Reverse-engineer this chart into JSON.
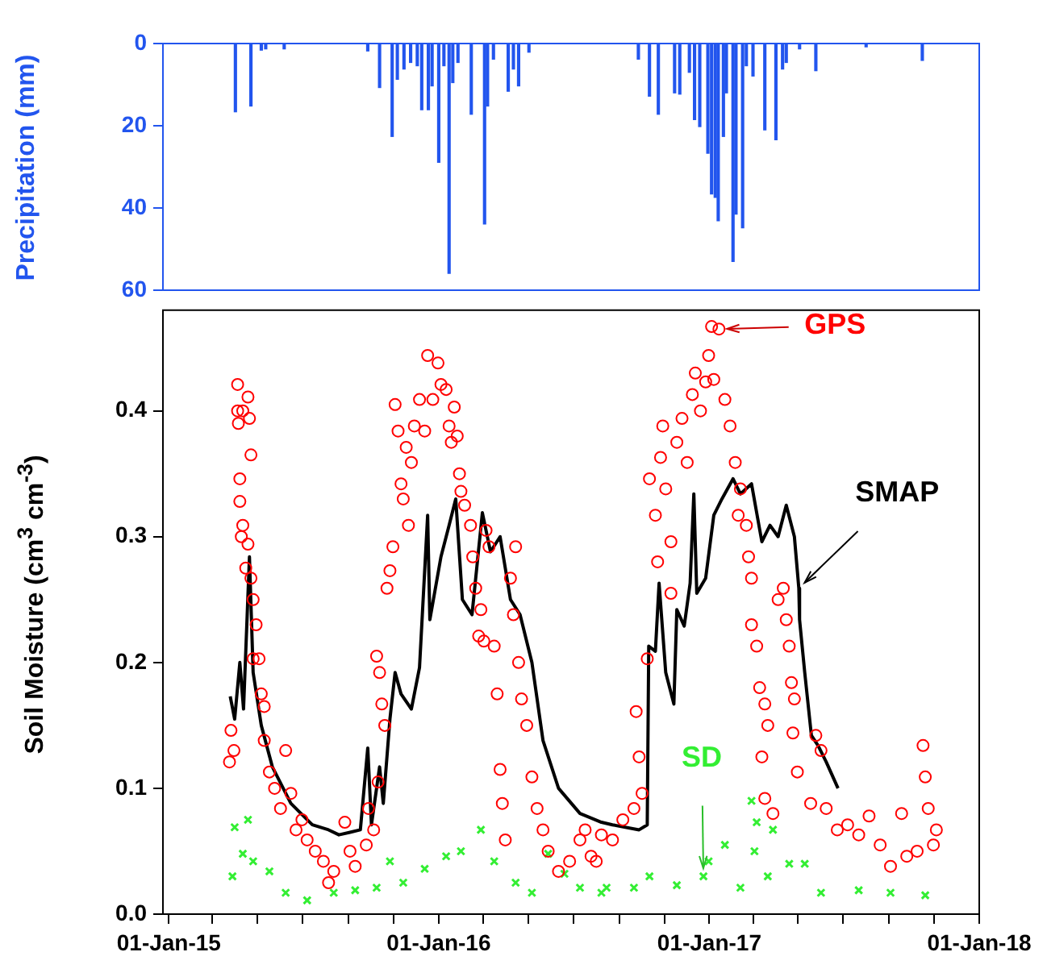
{
  "chart_data": [
    {
      "type": "bar",
      "ylabel": "Precipitation (mm)",
      "color": "#2255ee",
      "xlim": [
        "2014-12-24",
        "2018-01-01"
      ],
      "ylim": [
        60,
        0
      ],
      "yticks": [
        0,
        20,
        40,
        60
      ],
      "tick_labels": "y",
      "x": [
        "2015-04-01",
        "2015-04-22",
        "2015-05-06",
        "2015-05-12",
        "2015-06-06",
        "2015-09-27",
        "2015-10-13",
        "2015-10-30",
        "2015-11-06",
        "2015-11-15",
        "2015-11-24",
        "2015-12-03",
        "2015-12-09",
        "2015-12-18",
        "2015-12-23",
        "2016-01-01",
        "2016-01-08",
        "2016-01-15",
        "2016-01-20",
        "2016-01-27",
        "2016-02-14",
        "2016-03-03",
        "2016-03-07",
        "2016-03-15",
        "2016-04-04",
        "2016-04-11",
        "2016-04-18",
        "2016-05-02",
        "2016-09-27",
        "2016-10-12",
        "2016-10-24",
        "2016-11-15",
        "2016-11-22",
        "2016-12-05",
        "2016-12-12",
        "2016-12-19",
        "2016-12-30",
        "2017-01-04",
        "2017-01-09",
        "2017-01-13",
        "2017-01-20",
        "2017-01-24",
        "2017-02-02",
        "2017-02-06",
        "2017-02-15",
        "2017-02-20",
        "2017-03-01",
        "2017-03-17",
        "2017-04-01",
        "2017-04-10",
        "2017-04-15",
        "2017-05-03",
        "2017-05-25",
        "2017-08-01",
        "2017-10-16"
      ],
      "values": [
        16.6,
        15.2,
        1.6,
        1.3,
        1.3,
        1.8,
        10.7,
        22.6,
        8.7,
        6.2,
        4.6,
        5.4,
        16.1,
        16.1,
        10.3,
        28.9,
        5.4,
        55.9,
        9.5,
        4.6,
        17.2,
        43.9,
        15.2,
        3.8,
        11.6,
        6.2,
        10.3,
        2.1,
        3.8,
        12.8,
        17.2,
        12.0,
        12.3,
        7.0,
        18.5,
        20.2,
        26.7,
        36.6,
        37.4,
        43.1,
        22.6,
        12.0,
        53.0,
        41.5,
        44.8,
        5.4,
        7.9,
        21.0,
        23.4,
        6.2,
        4.6,
        1.3,
        6.6,
        0.8,
        4.1
      ]
    },
    {
      "type": "scatter",
      "ylabel": "Soil Moisture (cm$^{3}$ cm$^{-3}$)",
      "xlim": [
        "2014-12-24",
        "2018-01-01"
      ],
      "xticks": [
        {
          "value": "2015-01-01",
          "label": "01-Jan-15"
        },
        {
          "value": "2015-03-01",
          "label": null
        },
        {
          "value": "2015-05-01",
          "label": null
        },
        {
          "value": "2015-07-01",
          "label": null
        },
        {
          "value": "2015-09-01",
          "label": null
        },
        {
          "value": "2015-11-01",
          "label": null
        },
        {
          "value": "2016-01-01",
          "label": "01-Jan-16"
        },
        {
          "value": "2016-03-01",
          "label": null
        },
        {
          "value": "2016-05-01",
          "label": null
        },
        {
          "value": "2016-07-01",
          "label": null
        },
        {
          "value": "2016-09-01",
          "label": null
        },
        {
          "value": "2016-11-01",
          "label": null
        },
        {
          "value": "2017-01-01",
          "label": "01-Jan-17"
        },
        {
          "value": "2017-03-01",
          "label": null
        },
        {
          "value": "2017-05-01",
          "label": null
        },
        {
          "value": "2017-07-01",
          "label": null
        },
        {
          "value": "2017-09-01",
          "label": null
        },
        {
          "value": "2017-11-01",
          "label": null
        },
        {
          "value": "2018-01-01",
          "label": "01-Jan-18"
        }
      ],
      "ylim": [
        0,
        0.48
      ],
      "yticks": [
        {
          "value": 0,
          "label": "0.0"
        },
        0.1,
        0.2,
        0.3,
        0.4
      ],
      "series": [
        {
          "type": "scatter",
          "marker": "circle",
          "color": "#ff0000",
          "x": [
            "2015-03-24",
            "2015-03-26",
            "2015-03-30",
            "2015-04-04",
            "2015-04-04",
            "2015-04-05",
            "2015-04-11",
            "2015-04-18",
            "2015-04-20",
            "2015-04-22",
            "2015-04-07",
            "2015-04-07",
            "2015-04-11",
            "2015-04-09",
            "2015-04-15",
            "2015-04-18",
            "2015-04-22",
            "2015-04-25",
            "2015-04-29",
            "2015-04-25",
            "2015-05-03",
            "2015-05-06",
            "2015-05-10",
            "2015-05-10",
            "2015-05-17",
            "2015-05-24",
            "2015-06-01",
            "2015-06-08",
            "2015-06-15",
            "2015-06-22",
            "2015-06-30",
            "2015-07-07",
            "2015-07-18",
            "2015-07-29",
            "2015-08-05",
            "2015-08-12",
            "2015-08-27",
            "2015-09-03",
            "2015-09-10",
            "2015-09-25",
            "2015-09-28",
            "2015-10-05",
            "2015-10-09",
            "2015-10-13",
            "2015-10-16",
            "2015-10-20",
            "2015-10-11",
            "2015-10-23",
            "2015-10-27",
            "2015-10-31",
            "2015-11-03",
            "2015-11-07",
            "2015-11-11",
            "2015-11-14",
            "2015-11-21",
            "2015-11-18",
            "2015-11-25",
            "2015-11-29",
            "2015-12-06",
            "2015-12-13",
            "2015-12-17",
            "2015-12-24",
            "2015-12-31",
            "2016-01-04",
            "2016-01-11",
            "2016-01-15",
            "2016-01-18",
            "2016-01-22",
            "2016-01-26",
            "2016-01-29",
            "2016-01-31",
            "2016-02-05",
            "2016-02-13",
            "2016-02-16",
            "2016-02-20",
            "2016-02-24",
            "2016-02-27",
            "2016-03-02",
            "2016-03-05",
            "2016-03-09",
            "2016-03-16",
            "2016-03-20",
            "2016-03-24",
            "2016-03-27",
            "2016-03-31",
            "2016-04-07",
            "2016-04-11",
            "2016-04-14",
            "2016-04-18",
            "2016-04-22",
            "2016-04-29",
            "2016-05-06",
            "2016-05-13",
            "2016-05-21",
            "2016-05-28",
            "2016-06-11",
            "2016-06-26",
            "2016-07-10",
            "2016-07-25",
            "2016-08-08",
            "2016-07-17",
            "2016-08-01",
            "2016-08-23",
            "2016-09-06",
            "2016-09-21",
            "2016-10-02",
            "2016-09-28",
            "2016-09-24",
            "2016-10-09",
            "2016-10-12",
            "2016-10-20",
            "2016-10-23",
            "2016-10-27",
            "2016-10-30",
            "2016-11-03",
            "2016-11-10",
            "2016-11-10",
            "2016-11-18",
            "2016-11-25",
            "2016-12-02",
            "2016-12-09",
            "2016-12-13",
            "2016-12-20",
            "2016-12-27",
            "2016-12-31",
            "2017-01-07",
            "2017-01-04",
            "2017-01-14",
            "2017-01-22",
            "2017-01-29",
            "2017-02-05",
            "2017-02-09",
            "2017-02-12",
            "2017-02-20",
            "2017-02-23",
            "2017-02-27",
            "2017-02-27",
            "2017-03-06",
            "2017-03-10",
            "2017-03-17",
            "2017-03-21",
            "2017-03-13",
            "2017-03-17",
            "2017-03-28",
            "2017-04-04",
            "2017-04-11",
            "2017-04-15",
            "2017-04-19",
            "2017-04-22",
            "2017-04-26",
            "2017-04-24",
            "2017-04-30",
            "2017-05-18",
            "2017-05-25",
            "2017-06-01",
            "2017-06-08",
            "2017-06-23",
            "2017-07-07",
            "2017-07-22",
            "2017-08-05",
            "2017-08-20",
            "2017-09-03",
            "2017-09-18",
            "2017-09-25",
            "2017-10-09",
            "2017-10-17",
            "2017-10-20",
            "2017-10-24",
            "2017-10-31",
            "2017-11-04"
          ],
          "values": [
            0.121,
            0.146,
            0.13,
            0.421,
            0.4,
            0.39,
            0.4,
            0.411,
            0.394,
            0.365,
            0.346,
            0.328,
            0.309,
            0.3,
            0.275,
            0.294,
            0.267,
            0.25,
            0.23,
            0.203,
            0.203,
            0.175,
            0.165,
            0.138,
            0.113,
            0.1,
            0.084,
            0.13,
            0.096,
            0.067,
            0.075,
            0.059,
            0.05,
            0.042,
            0.025,
            0.034,
            0.073,
            0.05,
            0.038,
            0.055,
            0.084,
            0.067,
            0.205,
            0.192,
            0.167,
            0.15,
            0.105,
            0.259,
            0.273,
            0.292,
            0.405,
            0.384,
            0.342,
            0.33,
            0.309,
            0.371,
            0.359,
            0.388,
            0.409,
            0.384,
            0.444,
            0.409,
            0.438,
            0.421,
            0.417,
            0.388,
            0.375,
            0.403,
            0.38,
            0.35,
            0.336,
            0.325,
            0.309,
            0.284,
            0.259,
            0.221,
            0.242,
            0.217,
            0.305,
            0.292,
            0.213,
            0.175,
            0.115,
            0.088,
            0.059,
            0.267,
            0.238,
            0.292,
            0.2,
            0.171,
            0.15,
            0.109,
            0.084,
            0.067,
            0.05,
            0.034,
            0.042,
            0.059,
            0.046,
            0.063,
            0.067,
            0.042,
            0.059,
            0.075,
            0.084,
            0.096,
            0.125,
            0.161,
            0.203,
            0.346,
            0.317,
            0.28,
            0.363,
            0.388,
            0.338,
            0.296,
            0.255,
            0.375,
            0.394,
            0.359,
            0.413,
            0.43,
            0.4,
            0.423,
            0.444,
            0.425,
            0.467,
            0.465,
            0.409,
            0.388,
            0.359,
            0.317,
            0.338,
            0.309,
            0.284,
            0.267,
            0.23,
            0.213,
            0.18,
            0.167,
            0.15,
            0.125,
            0.092,
            0.08,
            0.25,
            0.259,
            0.234,
            0.213,
            0.184,
            0.171,
            0.144,
            0.113,
            0.088,
            0.142,
            0.13,
            0.084,
            0.067,
            0.071,
            0.063,
            0.078,
            0.055,
            0.038,
            0.08,
            0.046,
            0.05,
            0.134,
            0.109,
            0.084,
            0.055,
            0.067
          ]
        },
        {
          "type": "line",
          "marker": "none",
          "color": "#000000",
          "x": [
            "2015-03-25",
            "2015-03-31",
            "2015-04-07",
            "2015-04-12",
            "2015-04-20",
            "2015-04-25",
            "2015-05-06",
            "2015-05-21",
            "2015-06-15",
            "2015-07-14",
            "2015-08-05",
            "2015-08-19",
            "2015-09-03",
            "2015-09-17",
            "2015-09-27",
            "2015-10-02",
            "2015-10-13",
            "2015-10-18",
            "2015-10-27",
            "2015-11-03",
            "2015-11-11",
            "2015-11-25",
            "2015-12-06",
            "2015-12-17",
            "2015-12-20",
            "2016-01-04",
            "2016-01-15",
            "2016-01-24",
            "2016-02-02",
            "2016-02-15",
            "2016-02-29",
            "2016-03-11",
            "2016-03-24",
            "2016-04-07",
            "2016-04-20",
            "2016-05-06",
            "2016-05-21",
            "2016-06-11",
            "2016-07-10",
            "2016-08-08",
            "2016-08-23",
            "2016-09-28",
            "2016-10-09",
            "2016-10-11",
            "2016-10-20",
            "2016-10-25",
            "2016-11-03",
            "2016-11-14",
            "2016-11-18",
            "2016-11-28",
            "2016-12-06",
            "2016-12-11",
            "2016-12-15",
            "2016-12-27",
            "2017-01-07",
            "2017-01-18",
            "2017-02-02",
            "2017-02-12",
            "2017-02-27",
            "2017-03-13",
            "2017-03-24",
            "2017-04-04",
            "2017-04-15",
            "2017-04-26",
            "2017-05-02",
            "2017-05-03",
            "2017-05-10",
            "2017-05-19",
            "2017-05-28",
            "2017-06-08",
            "2017-06-24"
          ],
          "values": [
            0.173,
            0.155,
            0.2,
            0.163,
            0.284,
            0.192,
            0.15,
            0.117,
            0.088,
            0.071,
            0.067,
            0.063,
            0.065,
            0.067,
            0.132,
            0.071,
            0.117,
            0.088,
            0.155,
            0.192,
            0.175,
            0.163,
            0.196,
            0.317,
            0.234,
            0.284,
            0.309,
            0.33,
            0.25,
            0.238,
            0.319,
            0.288,
            0.3,
            0.25,
            0.238,
            0.2,
            0.138,
            0.1,
            0.08,
            0.073,
            0.071,
            0.067,
            0.071,
            0.213,
            0.209,
            0.263,
            0.192,
            0.167,
            0.242,
            0.229,
            0.263,
            0.334,
            0.255,
            0.267,
            0.317,
            0.33,
            0.346,
            0.334,
            0.342,
            0.296,
            0.309,
            0.3,
            0.325,
            0.3,
            0.259,
            0.234,
            0.192,
            0.142,
            0.134,
            0.121,
            0.1
          ]
        },
        {
          "type": "scatter",
          "marker": "cross",
          "color": "#33ee33",
          "x": [
            "2015-03-31",
            "2015-04-18",
            "2015-03-28",
            "2015-04-11",
            "2015-04-25",
            "2015-05-17",
            "2015-06-08",
            "2015-07-07",
            "2015-08-12",
            "2015-09-10",
            "2015-10-09",
            "2015-10-27",
            "2015-11-14",
            "2015-12-13",
            "2016-01-11",
            "2016-01-31",
            "2016-02-27",
            "2016-03-16",
            "2016-04-14",
            "2016-05-06",
            "2016-05-28",
            "2016-06-19",
            "2016-07-10",
            "2016-08-08",
            "2016-08-15",
            "2016-09-21",
            "2016-10-12",
            "2016-11-18",
            "2016-12-24",
            "2016-12-31",
            "2017-01-22",
            "2017-02-12",
            "2017-03-03",
            "2017-03-06",
            "2017-02-27",
            "2017-03-28",
            "2017-03-21",
            "2017-04-19",
            "2017-05-10",
            "2017-06-01",
            "2017-07-22",
            "2017-09-03",
            "2017-10-20"
          ],
          "values": [
            0.069,
            0.075,
            0.03,
            0.048,
            0.042,
            0.034,
            0.017,
            0.011,
            0.017,
            0.019,
            0.021,
            0.042,
            0.025,
            0.036,
            0.046,
            0.05,
            0.067,
            0.042,
            0.025,
            0.017,
            0.048,
            0.032,
            0.021,
            0.017,
            0.021,
            0.021,
            0.03,
            0.023,
            0.03,
            0.042,
            0.055,
            0.021,
            0.05,
            0.073,
            0.09,
            0.067,
            0.03,
            0.04,
            0.04,
            0.017,
            0.019,
            0.017,
            0.015
          ]
        }
      ],
      "annotations": [
        {
          "text": "GPS",
          "x": "2017-01-14",
          "y": 0.465
        },
        {
          "text": "SMAP",
          "x": "2017-05-02",
          "y": 0.259
        },
        {
          "text": "SD",
          "x": "2016-12-24",
          "y": 0.03
        }
      ]
    }
  ]
}
